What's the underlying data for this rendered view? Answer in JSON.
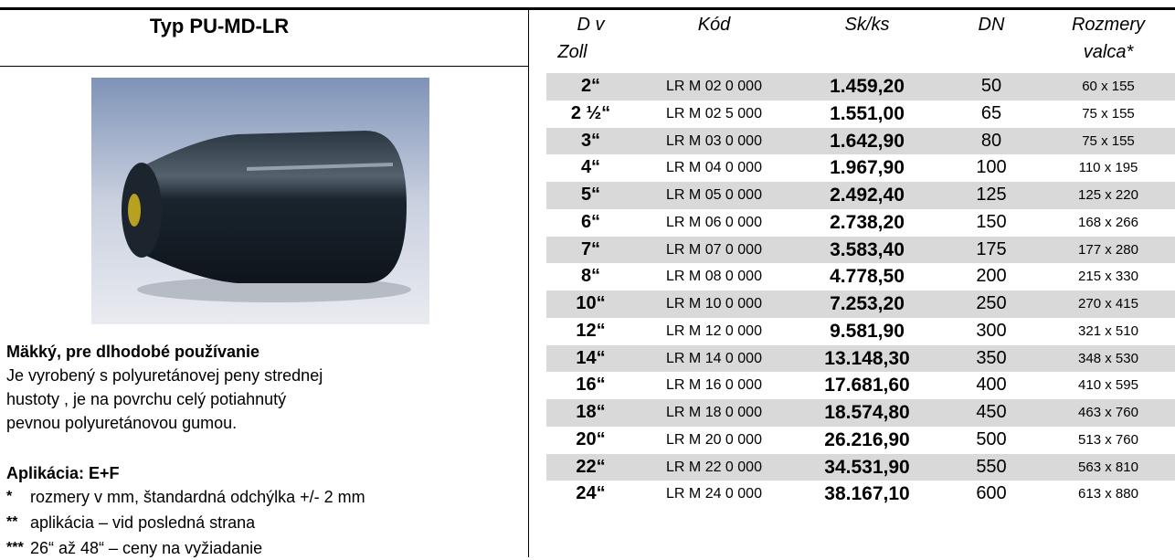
{
  "left": {
    "title": "Typ PU-MD-LR",
    "subtitle": "Mäkký, pre dlhodobé používanie",
    "description": [
      "Je vyrobený s polyuretánovej  peny  strednej",
      "hustoty , je  na  povrchu  celý  potiahnutý",
      "pevnou polyuretánovou gumou."
    ],
    "application": "Aplikácia: E+F",
    "notes": [
      {
        "mark": "*",
        "text": "rozmery v mm, štandardná odchýlka +/- 2 mm"
      },
      {
        "mark": "**",
        "text": "aplikácia – vid posledná strana"
      },
      {
        "mark": "***",
        "text": "26“ až 48“ – ceny na vyžiadanie"
      }
    ]
  },
  "table": {
    "headers": [
      [
        "D v",
        "Zoll"
      ],
      [
        "Kód"
      ],
      [
        "Sk/ks"
      ],
      [
        "DN"
      ],
      [
        "Rozmery",
        "valca*"
      ]
    ],
    "rows": [
      [
        "2“",
        "LR M 02 0 000",
        "1.459,20",
        "50",
        "60 x 155"
      ],
      [
        "2 ½“",
        "LR M 02 5 000",
        "1.551,00",
        "65",
        "75 x 155"
      ],
      [
        "3“",
        "LR M 03 0 000",
        "1.642,90",
        "80",
        "75 x 155"
      ],
      [
        "4“",
        "LR M 04 0 000",
        "1.967,90",
        "100",
        "110 x 195"
      ],
      [
        "5“",
        "LR M 05 0 000",
        "2.492,40",
        "125",
        "125 x 220"
      ],
      [
        "6“",
        "LR M 06 0 000",
        "2.738,20",
        "150",
        "168 x 266"
      ],
      [
        "7“",
        "LR M 07 0 000",
        "3.583,40",
        "175",
        "177 x 280"
      ],
      [
        "8“",
        "LR M 08 0 000",
        "4.778,50",
        "200",
        "215 x 330"
      ],
      [
        "10“",
        "LR M 10 0 000",
        "7.253,20",
        "250",
        "270 x 415"
      ],
      [
        "12“",
        "LR M 12 0 000",
        "9.581,90",
        "300",
        "321 x 510"
      ],
      [
        "14“",
        "LR M 14 0 000",
        "13.148,30",
        "350",
        "348 x 530"
      ],
      [
        "16“",
        "LR M 16 0 000",
        "17.681,60",
        "400",
        "410 x 595"
      ],
      [
        "18“",
        "LR M 18 0 000",
        "18.574,80",
        "450",
        "463 x 760"
      ],
      [
        "20“",
        "LR M 20 0 000",
        "26.216,90",
        "500",
        "513 x 760"
      ],
      [
        "22“",
        "LR M 22 0 000",
        "34.531,90",
        "550",
        "563 x 810"
      ],
      [
        "24“",
        "LR M 24 0 000",
        "38.167,10",
        "600",
        "613 x 880"
      ]
    ]
  }
}
